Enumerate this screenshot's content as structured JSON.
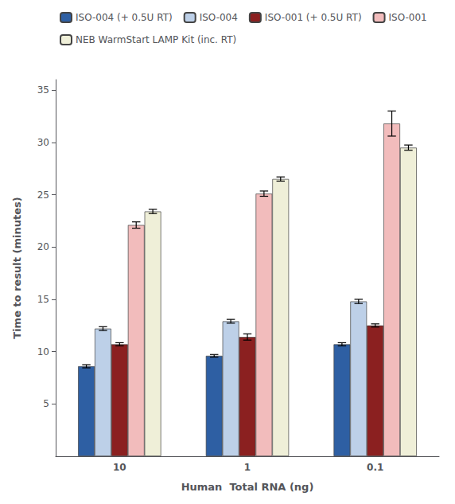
{
  "chart_data": {
    "type": "bar",
    "xlabel": "Human  Total RNA (ng)",
    "ylabel": "Time to result (minutes)",
    "categories": [
      "10",
      "1",
      "0.1"
    ],
    "series": [
      {
        "name": "ISO-004 (+ 0.5U RT)",
        "color": "#2E5FA3",
        "values": [
          8.6,
          9.6,
          10.7
        ],
        "errors": [
          0.15,
          0.12,
          0.15
        ]
      },
      {
        "name": "ISO-004",
        "color": "#BDD0E8",
        "values": [
          12.2,
          12.9,
          14.8
        ],
        "errors": [
          0.18,
          0.18,
          0.2
        ]
      },
      {
        "name": "ISO-001 (+ 0.5U RT)",
        "color": "#8B2020",
        "values": [
          10.7,
          11.4,
          12.5
        ],
        "errors": [
          0.15,
          0.3,
          0.15
        ]
      },
      {
        "name": "ISO-001",
        "color": "#F2BCBC",
        "values": [
          22.1,
          25.1,
          31.8
        ],
        "errors": [
          0.3,
          0.25,
          1.2
        ]
      },
      {
        "name": "NEB WarmStart LAMP Kit (inc. RT)",
        "color": "#EFEFD8",
        "values": [
          23.4,
          26.5,
          29.5
        ],
        "errors": [
          0.2,
          0.2,
          0.25
        ]
      }
    ],
    "ylim": [
      0,
      36
    ],
    "yticks": [
      5,
      10,
      15,
      20,
      25,
      30,
      35
    ],
    "grid": false,
    "legend": "upper left"
  }
}
